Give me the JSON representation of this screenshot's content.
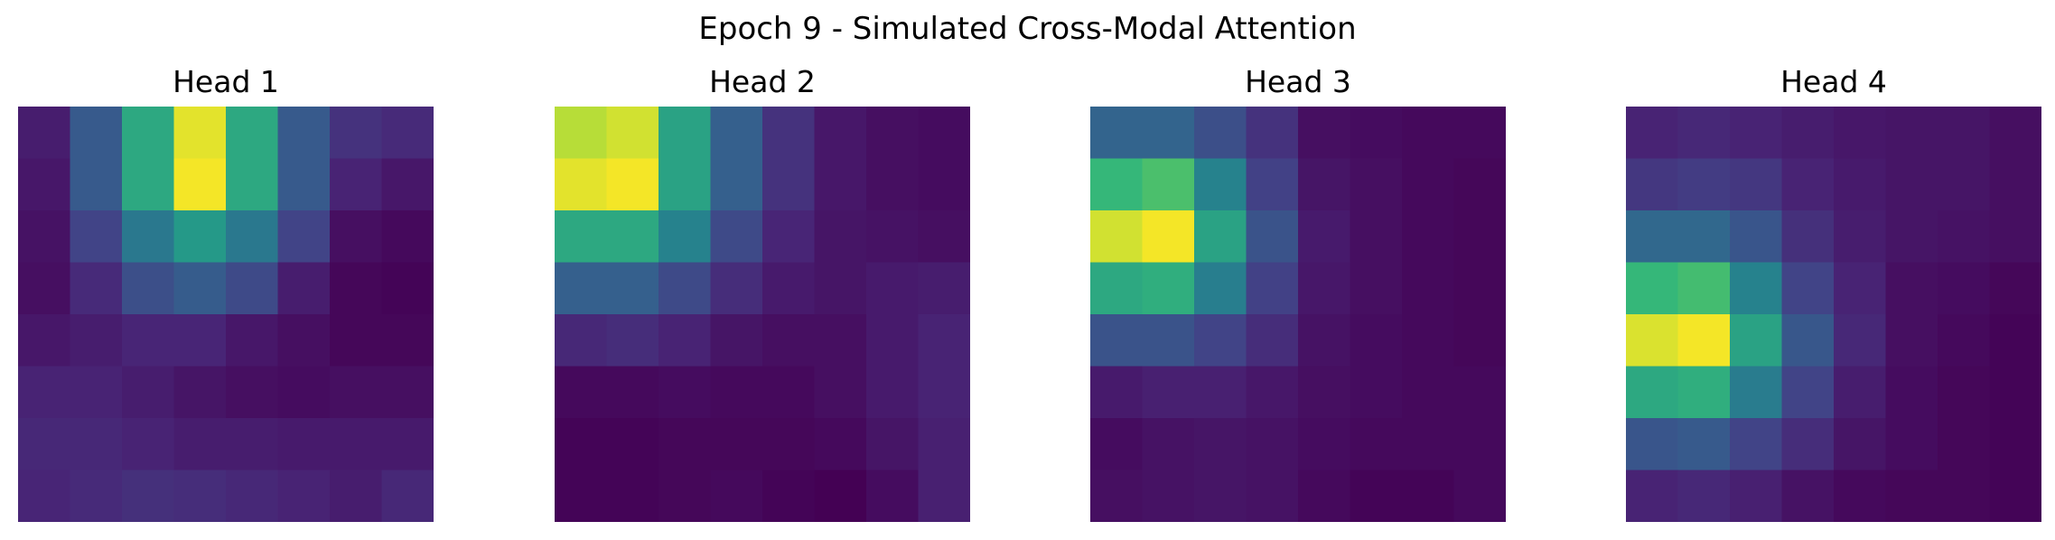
{
  "figure": {
    "title": "Epoch 9 - Simulated Cross-Modal Attention"
  },
  "chart_data": [
    {
      "type": "heatmap",
      "title": "Head 1",
      "colormap": "viridis",
      "vmin": 0,
      "vmax": 1,
      "axis": "off",
      "values": [
        [
          0.1,
          0.35,
          0.7,
          0.97,
          0.7,
          0.35,
          0.18,
          0.15
        ],
        [
          0.08,
          0.35,
          0.7,
          0.99,
          0.7,
          0.35,
          0.12,
          0.08
        ],
        [
          0.06,
          0.25,
          0.5,
          0.65,
          0.5,
          0.25,
          0.05,
          0.03
        ],
        [
          0.05,
          0.15,
          0.3,
          0.36,
          0.28,
          0.1,
          0.02,
          0.01
        ],
        [
          0.08,
          0.1,
          0.13,
          0.13,
          0.08,
          0.05,
          0.02,
          0.02
        ],
        [
          0.12,
          0.12,
          0.1,
          0.07,
          0.05,
          0.04,
          0.05,
          0.05
        ],
        [
          0.14,
          0.14,
          0.12,
          0.1,
          0.1,
          0.09,
          0.09,
          0.09
        ],
        [
          0.13,
          0.15,
          0.17,
          0.16,
          0.14,
          0.12,
          0.1,
          0.14
        ]
      ]
    },
    {
      "type": "heatmap",
      "title": "Head 2",
      "colormap": "viridis",
      "vmin": 0,
      "vmax": 1,
      "axis": "off",
      "values": [
        [
          0.92,
          0.95,
          0.68,
          0.38,
          0.18,
          0.08,
          0.05,
          0.04
        ],
        [
          0.97,
          0.99,
          0.68,
          0.38,
          0.18,
          0.08,
          0.05,
          0.04
        ],
        [
          0.7,
          0.7,
          0.55,
          0.28,
          0.13,
          0.07,
          0.06,
          0.05
        ],
        [
          0.38,
          0.38,
          0.28,
          0.16,
          0.09,
          0.07,
          0.09,
          0.1
        ],
        [
          0.14,
          0.16,
          0.12,
          0.07,
          0.05,
          0.05,
          0.09,
          0.12
        ],
        [
          0.03,
          0.03,
          0.04,
          0.03,
          0.03,
          0.05,
          0.09,
          0.12
        ],
        [
          0.01,
          0.01,
          0.02,
          0.02,
          0.02,
          0.03,
          0.07,
          0.11
        ],
        [
          0.01,
          0.01,
          0.02,
          0.03,
          0.01,
          0.0,
          0.04,
          0.11
        ]
      ]
    },
    {
      "type": "heatmap",
      "title": "Head 3",
      "colormap": "viridis",
      "vmin": 0,
      "vmax": 1,
      "axis": "off",
      "values": [
        [
          0.4,
          0.4,
          0.3,
          0.18,
          0.05,
          0.04,
          0.03,
          0.03
        ],
        [
          0.75,
          0.78,
          0.55,
          0.24,
          0.07,
          0.05,
          0.03,
          0.02
        ],
        [
          0.95,
          0.99,
          0.68,
          0.32,
          0.09,
          0.05,
          0.03,
          0.02
        ],
        [
          0.7,
          0.72,
          0.53,
          0.24,
          0.08,
          0.05,
          0.03,
          0.02
        ],
        [
          0.32,
          0.32,
          0.25,
          0.16,
          0.06,
          0.04,
          0.03,
          0.02
        ],
        [
          0.09,
          0.11,
          0.11,
          0.08,
          0.05,
          0.04,
          0.03,
          0.03
        ],
        [
          0.04,
          0.06,
          0.07,
          0.06,
          0.04,
          0.03,
          0.03,
          0.03
        ],
        [
          0.05,
          0.06,
          0.07,
          0.06,
          0.03,
          0.01,
          0.01,
          0.03
        ]
      ]
    },
    {
      "type": "heatmap",
      "title": "Head 4",
      "colormap": "viridis",
      "vmin": 0,
      "vmax": 1,
      "axis": "off",
      "values": [
        [
          0.12,
          0.14,
          0.12,
          0.1,
          0.08,
          0.07,
          0.07,
          0.05
        ],
        [
          0.2,
          0.22,
          0.2,
          0.12,
          0.09,
          0.07,
          0.07,
          0.05
        ],
        [
          0.42,
          0.42,
          0.33,
          0.17,
          0.1,
          0.07,
          0.06,
          0.05
        ],
        [
          0.75,
          0.77,
          0.55,
          0.25,
          0.12,
          0.05,
          0.04,
          0.02
        ],
        [
          0.96,
          0.99,
          0.68,
          0.34,
          0.14,
          0.05,
          0.03,
          0.01
        ],
        [
          0.7,
          0.72,
          0.52,
          0.25,
          0.1,
          0.04,
          0.02,
          0.01
        ],
        [
          0.33,
          0.35,
          0.25,
          0.16,
          0.07,
          0.04,
          0.02,
          0.01
        ],
        [
          0.12,
          0.14,
          0.11,
          0.06,
          0.03,
          0.02,
          0.02,
          0.01
        ]
      ]
    }
  ]
}
